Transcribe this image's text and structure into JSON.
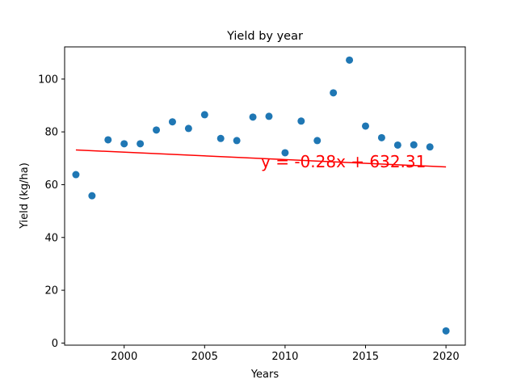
{
  "chart_data": {
    "type": "scatter",
    "title": "Yield by year",
    "xlabel": "Years",
    "ylabel": "Yield (kg/ha)",
    "xlim": [
      1996.3,
      2021.2
    ],
    "ylim": [
      -0.8,
      112.2
    ],
    "xticks": [
      2000,
      2005,
      2010,
      2015,
      2020
    ],
    "yticks": [
      0,
      20,
      40,
      60,
      80,
      100
    ],
    "grid": false,
    "legend": "none",
    "points": [
      {
        "x": 1997,
        "y": 63.8
      },
      {
        "x": 1998,
        "y": 55.8
      },
      {
        "x": 1999,
        "y": 77.0
      },
      {
        "x": 2000,
        "y": 75.5
      },
      {
        "x": 2001,
        "y": 75.5
      },
      {
        "x": 2002,
        "y": 80.7
      },
      {
        "x": 2003,
        "y": 83.8
      },
      {
        "x": 2004,
        "y": 81.3
      },
      {
        "x": 2005,
        "y": 86.5
      },
      {
        "x": 2006,
        "y": 77.5
      },
      {
        "x": 2007,
        "y": 76.7
      },
      {
        "x": 2008,
        "y": 85.6
      },
      {
        "x": 2009,
        "y": 85.9
      },
      {
        "x": 2010,
        "y": 72.1
      },
      {
        "x": 2011,
        "y": 84.1
      },
      {
        "x": 2012,
        "y": 76.7
      },
      {
        "x": 2013,
        "y": 94.8
      },
      {
        "x": 2014,
        "y": 107.2
      },
      {
        "x": 2015,
        "y": 82.2
      },
      {
        "x": 2016,
        "y": 77.8
      },
      {
        "x": 2017,
        "y": 75.0
      },
      {
        "x": 2018,
        "y": 75.1
      },
      {
        "x": 2019,
        "y": 74.3
      },
      {
        "x": 2020,
        "y": 4.6
      }
    ],
    "trendline": {
      "slope": -0.28,
      "intercept": 632.31,
      "x_start": 1997,
      "x_end": 2020,
      "equation": "y = -0.28x + 632.31",
      "annotation_at": {
        "x": 2008.5,
        "y": 66.5
      }
    },
    "colors": {
      "points": "#1f77b4",
      "trendline": "#ff0000",
      "annotation": "#ff0000"
    }
  }
}
